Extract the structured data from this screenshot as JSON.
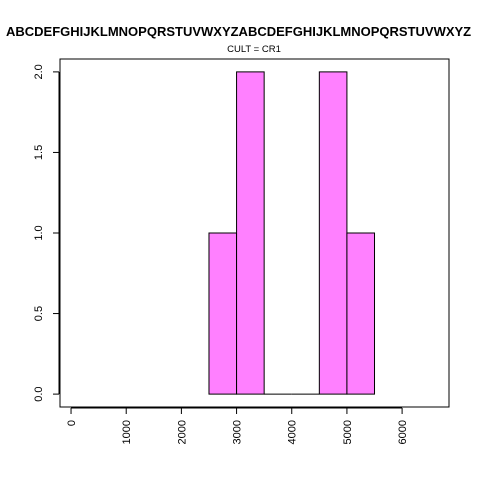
{
  "chart_data": {
    "type": "bar",
    "title": "ABCDEFGHIJKLMNOPQRSTUVWXYZABCDEFGHIJKLMNOPQRSTUVWXYZ",
    "subtitle": "CULT = CR1",
    "xlabel": "",
    "ylabel": "",
    "bins": [
      {
        "x0": 2500,
        "x1": 3000,
        "value": 1
      },
      {
        "x0": 3000,
        "x1": 3500,
        "value": 2
      },
      {
        "x0": 3500,
        "x1": 4000,
        "value": 0
      },
      {
        "x0": 4000,
        "x1": 4500,
        "value": 0
      },
      {
        "x0": 4500,
        "x1": 5000,
        "value": 2
      },
      {
        "x0": 5000,
        "x1": 5500,
        "value": 1
      }
    ],
    "xlim": [
      -200,
      6850
    ],
    "ylim": [
      -0.08,
      2.08
    ],
    "x_ticks": [
      "0",
      "1000",
      "2000",
      "3000",
      "4000",
      "5000",
      "6000"
    ],
    "y_ticks": [
      "0.0",
      "0.5",
      "1.0",
      "1.5",
      "2.0"
    ],
    "bar_color": "#ff80ff",
    "bar_edge_color": "#000000",
    "grid": false,
    "legend": "none"
  }
}
